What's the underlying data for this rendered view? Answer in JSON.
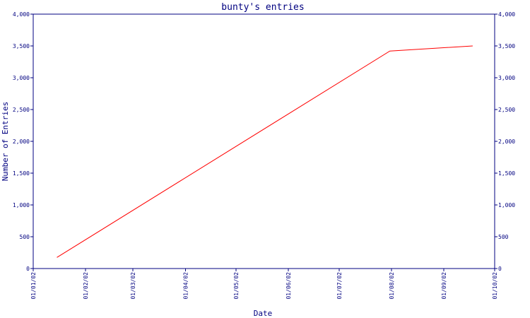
{
  "chart_data": {
    "type": "line",
    "title": "bunty's entries",
    "xlabel": "Date",
    "ylabel": "Number of Entries",
    "y_ticks": [
      "0",
      "500",
      "1,000",
      "1,500",
      "2,000",
      "2,500",
      "3,000",
      "3,500",
      "4,000"
    ],
    "y_tick_values": [
      0,
      500,
      1000,
      1500,
      2000,
      2500,
      3000,
      3500,
      4000
    ],
    "ylim": [
      0,
      4000
    ],
    "x_ticks": [
      "01/01/02",
      "01/02/02",
      "01/03/02",
      "01/04/02",
      "01/05/02",
      "01/06/02",
      "01/07/02",
      "01/08/02",
      "01/09/02",
      "01/10/02"
    ],
    "x_tick_dates": [
      "2002-01-01",
      "2002-02-01",
      "2002-03-01",
      "2002-04-01",
      "2002-05-01",
      "2002-06-01",
      "2002-07-01",
      "2002-08-01",
      "2002-09-01",
      "2002-10-01"
    ],
    "xlim": [
      "2002-01-01",
      "2002-10-01"
    ],
    "grid": false,
    "series": [
      {
        "color": "#ff0000",
        "x": [
          "2002-01-15",
          "2002-07-31",
          "2002-09-18"
        ],
        "values": [
          175,
          3420,
          3500
        ]
      }
    ],
    "colors": {
      "axis": "#000080",
      "text": "#000080",
      "line": "#ff0000"
    }
  }
}
